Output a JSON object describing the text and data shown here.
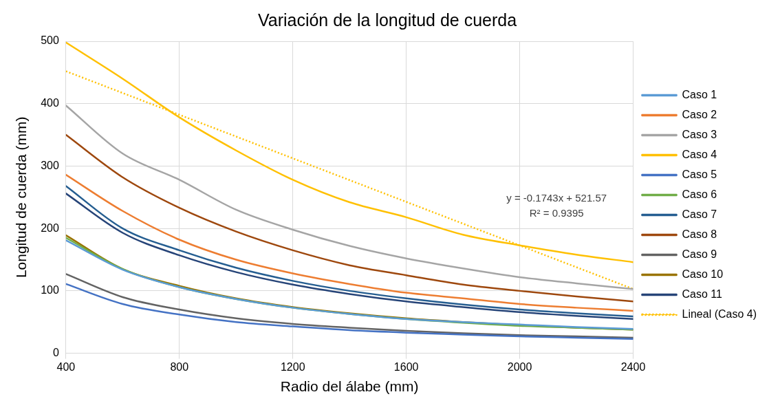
{
  "chart_data": {
    "type": "line",
    "title": "Variación de la longitud de cuerda",
    "xlabel": "Radio del álabe (mm)",
    "ylabel": "Longitud de cuerda (mm)",
    "x": [
      400,
      600,
      800,
      1000,
      1200,
      1400,
      1600,
      1800,
      2000,
      2200,
      2400
    ],
    "xlim": [
      400,
      2400
    ],
    "xticks": [
      400,
      800,
      1200,
      1600,
      2000,
      2400
    ],
    "ylim": [
      0,
      500
    ],
    "yticks": [
      0,
      100,
      200,
      300,
      400,
      500
    ],
    "grid": true,
    "legend": "right",
    "marker": "none",
    "line_style": "solid",
    "series": [
      {
        "name": "Caso 1",
        "color": "#5b9bd5",
        "values": [
          181,
          134,
          106,
          87,
          73,
          63,
          55,
          50,
          46,
          42,
          39
        ]
      },
      {
        "name": "Caso 2",
        "color": "#ed7d31",
        "values": [
          286,
          228,
          182,
          150,
          128,
          111,
          97,
          88,
          79,
          73,
          68
        ]
      },
      {
        "name": "Caso 3",
        "color": "#a5a5a5",
        "values": [
          397,
          320,
          278,
          230,
          198,
          172,
          152,
          136,
          122,
          112,
          103
        ]
      },
      {
        "name": "Caso 4",
        "color": "#ffc000",
        "values": [
          498,
          440,
          378,
          325,
          278,
          242,
          218,
          190,
          173,
          158,
          146
        ]
      },
      {
        "name": "Caso 5",
        "color": "#4472c4",
        "values": [
          111,
          79,
          62,
          50,
          43,
          37,
          33,
          30,
          27,
          25,
          23
        ]
      },
      {
        "name": "Caso 6",
        "color": "#70ad47",
        "values": [
          185,
          135,
          106,
          87,
          73,
          63,
          55,
          49,
          44,
          41,
          38
        ]
      },
      {
        "name": "Caso 7",
        "color": "#255e91",
        "values": [
          268,
          200,
          165,
          137,
          116,
          100,
          88,
          78,
          70,
          64,
          59
        ]
      },
      {
        "name": "Caso 8",
        "color": "#9e480e",
        "values": [
          350,
          282,
          233,
          195,
          165,
          141,
          125,
          110,
          100,
          91,
          83
        ]
      },
      {
        "name": "Caso 9",
        "color": "#636363",
        "values": [
          127,
          90,
          70,
          56,
          47,
          41,
          36,
          32,
          29,
          27,
          25
        ]
      },
      {
        "name": "Caso 10",
        "color": "#997300",
        "values": [
          189,
          135,
          108,
          88,
          74,
          64,
          56,
          50,
          45,
          41,
          38
        ]
      },
      {
        "name": "Caso 11",
        "color": "#264478",
        "values": [
          256,
          193,
          157,
          130,
          110,
          95,
          83,
          74,
          66,
          60,
          55
        ]
      },
      {
        "name": "Lineal (Caso 4)",
        "color": "#ffc000",
        "type": "line",
        "line_style": "dotted",
        "x": [
          400,
          2400
        ],
        "values": [
          452,
          103
        ]
      }
    ],
    "annotations": [
      "y = -0.1743x + 521.57",
      "R² = 0.9395"
    ]
  }
}
